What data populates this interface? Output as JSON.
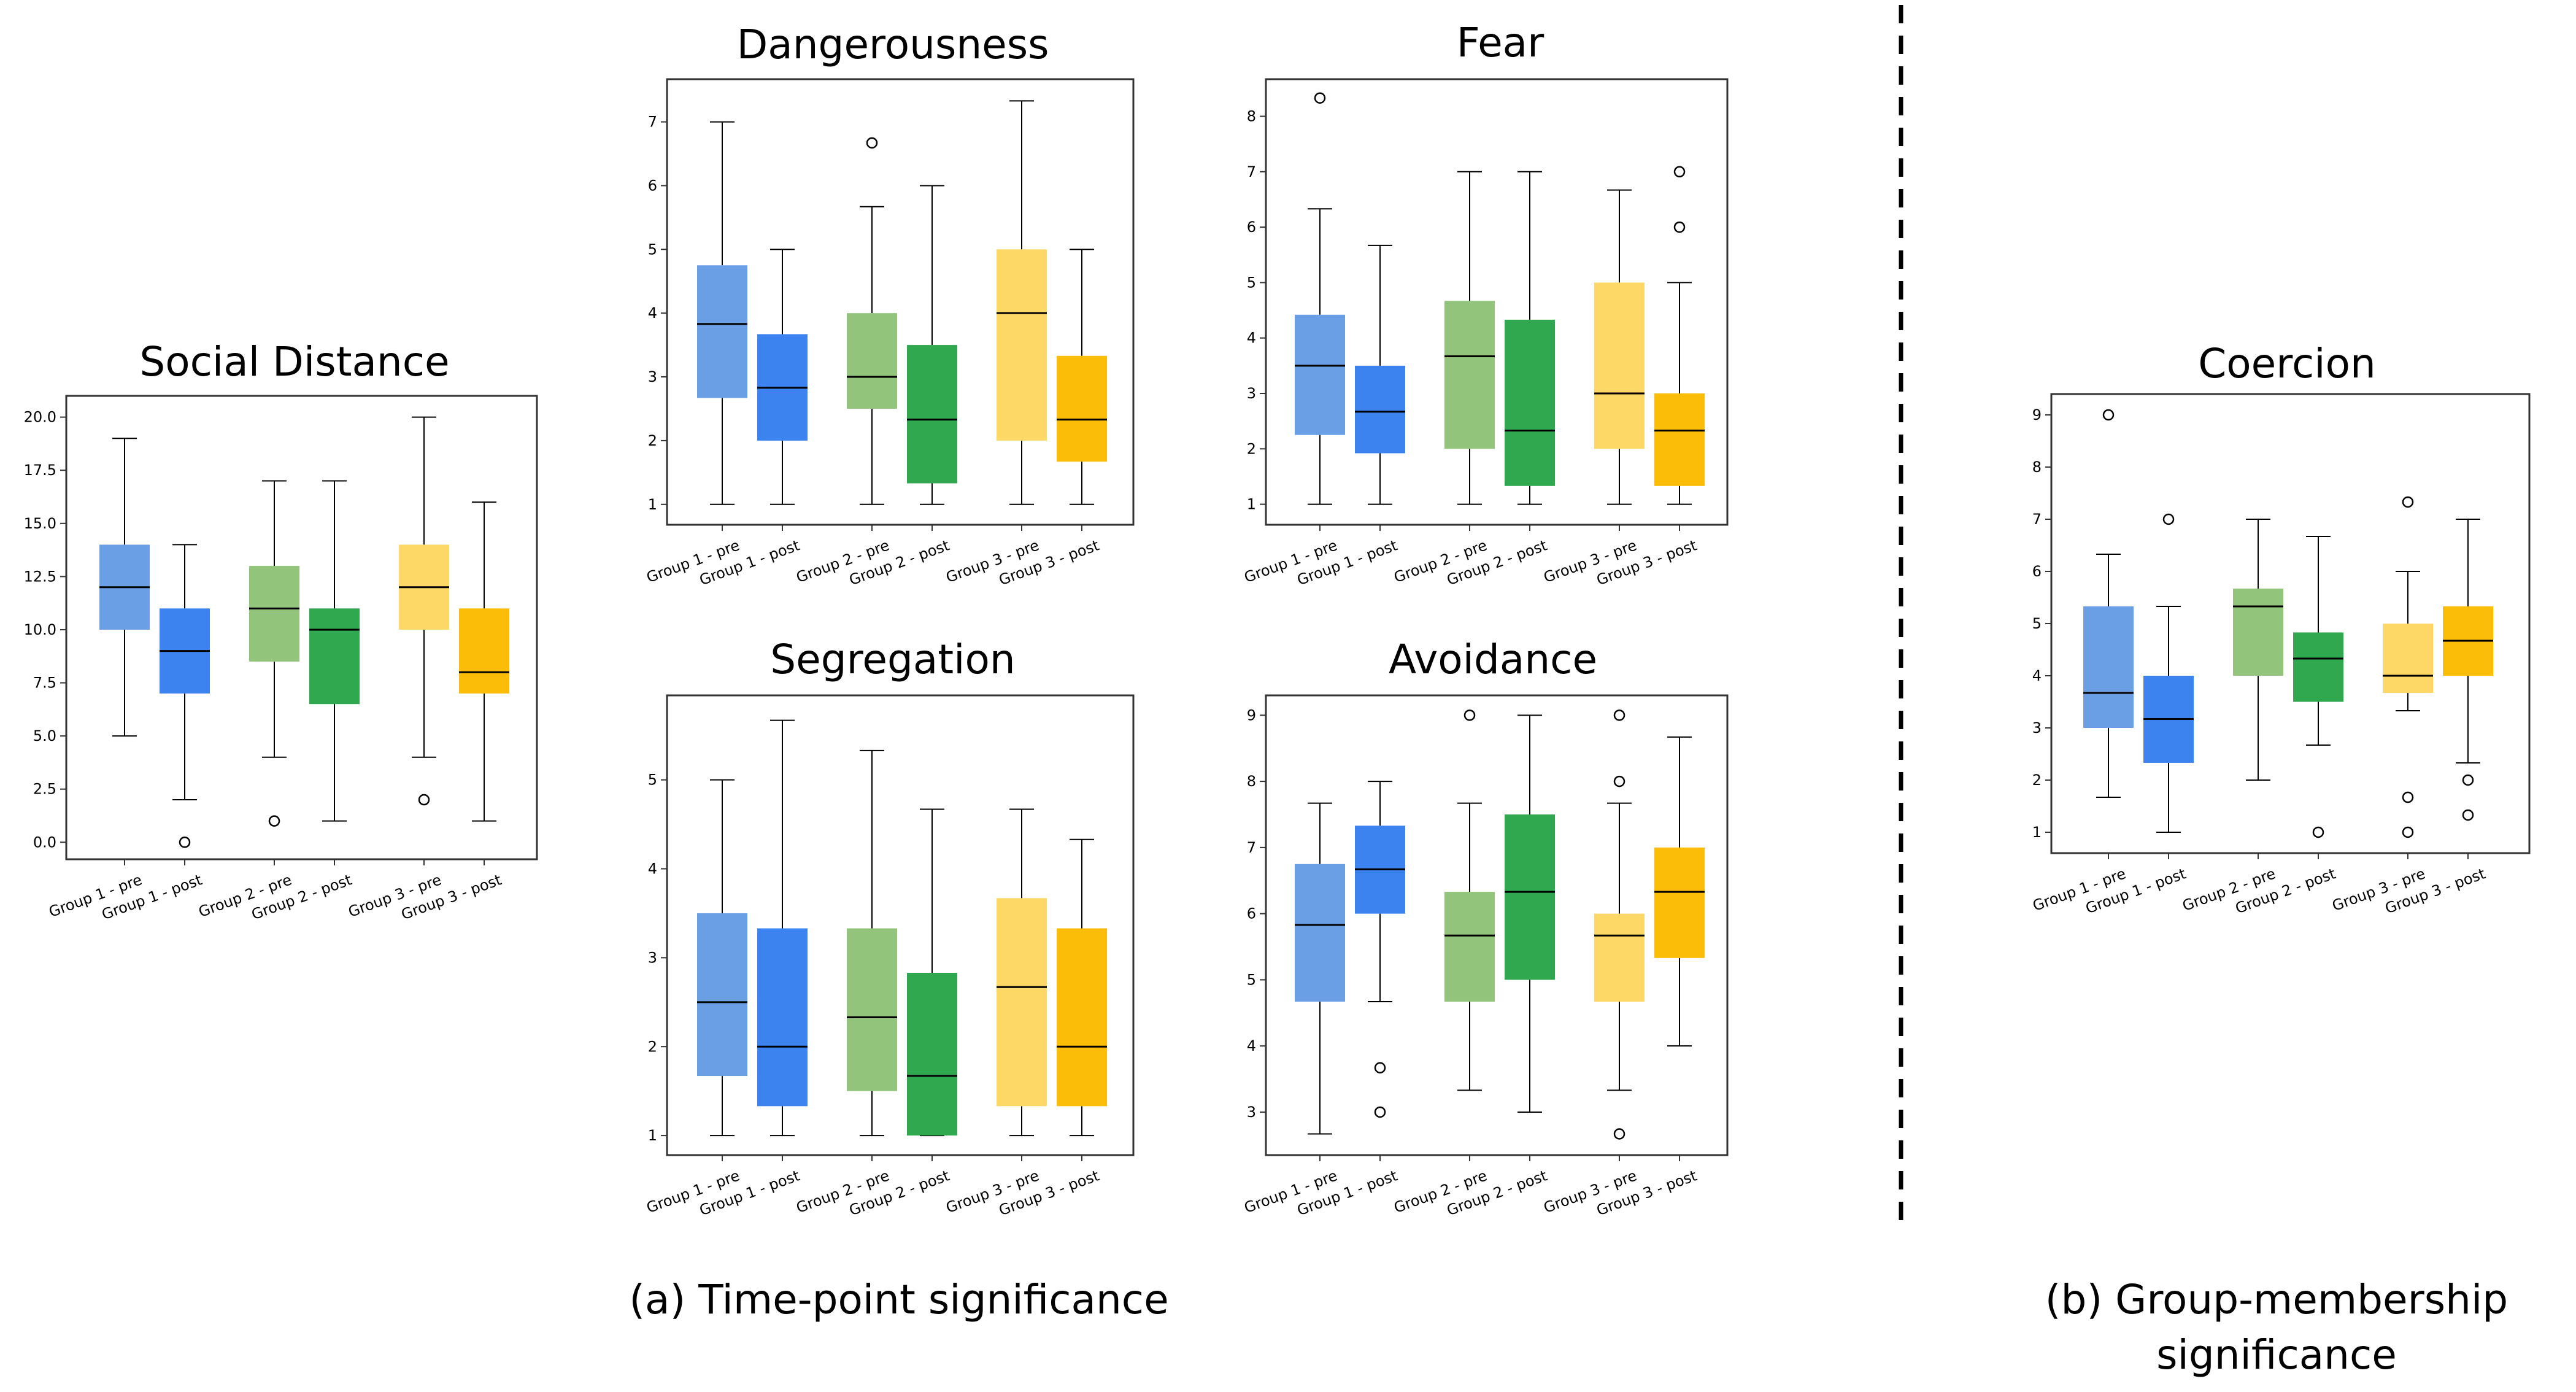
{
  "colors": {
    "g1_pre": "#6a9fe6",
    "g1_post": "#3d83f0",
    "g2_pre": "#92c47b",
    "g2_post": "#2fa84f",
    "g3_pre": "#fdd866",
    "g3_post": "#fbbd08",
    "median": "#000000",
    "frame": "#333333",
    "divider": "#000000"
  },
  "captions": {
    "a": "(a) Time-point significance",
    "b_line1": "(b) Group-membership",
    "b_line2": "significance"
  },
  "chart_data": [
    {
      "type": "boxplot",
      "title": "Social Distance",
      "categories": [
        "Group 1 - pre",
        "Group 1 - post",
        "Group 2 - pre",
        "Group 2 - post",
        "Group 3 - pre",
        "Group 3 - post"
      ],
      "ylim": [
        -0.8,
        21.0
      ],
      "yticks": [
        0.0,
        2.5,
        5.0,
        7.5,
        10.0,
        12.5,
        15.0,
        17.5,
        20.0
      ],
      "ytick_labels": [
        "0.0",
        "2.5",
        "5.0",
        "7.5",
        "10.0",
        "12.5",
        "15.0",
        "17.5",
        "20.0"
      ],
      "boxes": [
        {
          "min": 5,
          "q1": 10,
          "median": 12,
          "q3": 14,
          "max": 19,
          "outliers": []
        },
        {
          "min": 2,
          "q1": 7,
          "median": 9,
          "q3": 11,
          "max": 14,
          "outliers": [
            0
          ]
        },
        {
          "min": 4,
          "q1": 8.5,
          "median": 11,
          "q3": 13,
          "max": 17,
          "outliers": [
            1
          ]
        },
        {
          "min": 1,
          "q1": 6.5,
          "median": 10,
          "q3": 11,
          "max": 17,
          "outliers": []
        },
        {
          "min": 4,
          "q1": 10,
          "median": 12,
          "q3": 14,
          "max": 20,
          "outliers": [
            2
          ]
        },
        {
          "min": 1,
          "q1": 7,
          "median": 8,
          "q3": 11,
          "max": 16,
          "outliers": []
        }
      ]
    },
    {
      "type": "boxplot",
      "title": "Dangerousness",
      "categories": [
        "Group 1 - pre",
        "Group 1 - post",
        "Group 2 - pre",
        "Group 2 - post",
        "Group 3 - pre",
        "Group 3 - post"
      ],
      "ylim": [
        0.68,
        7.67
      ],
      "yticks": [
        1,
        2,
        3,
        4,
        5,
        6,
        7
      ],
      "ytick_labels": [
        "1",
        "2",
        "3",
        "4",
        "5",
        "6",
        "7"
      ],
      "boxes": [
        {
          "min": 1,
          "q1": 2.67,
          "median": 3.83,
          "q3": 4.75,
          "max": 7,
          "outliers": []
        },
        {
          "min": 1,
          "q1": 2,
          "median": 2.83,
          "q3": 3.67,
          "max": 5,
          "outliers": []
        },
        {
          "min": 1,
          "q1": 2.5,
          "median": 3,
          "q3": 4,
          "max": 5.67,
          "outliers": [
            6.67
          ]
        },
        {
          "min": 1,
          "q1": 1.33,
          "median": 2.33,
          "q3": 3.5,
          "max": 6,
          "outliers": []
        },
        {
          "min": 1,
          "q1": 2,
          "median": 4,
          "q3": 5,
          "max": 7.33,
          "outliers": []
        },
        {
          "min": 1,
          "q1": 1.67,
          "median": 2.33,
          "q3": 3.33,
          "max": 5,
          "outliers": []
        }
      ]
    },
    {
      "type": "boxplot",
      "title": "Fear",
      "categories": [
        "Group 1 - pre",
        "Group 1 - post",
        "Group 2 - pre",
        "Group 2 - post",
        "Group 3 - pre",
        "Group 3 - post"
      ],
      "ylim": [
        0.63,
        8.67
      ],
      "yticks": [
        1,
        2,
        3,
        4,
        5,
        6,
        7,
        8
      ],
      "ytick_labels": [
        "1",
        "2",
        "3",
        "4",
        "5",
        "6",
        "7",
        "8"
      ],
      "boxes": [
        {
          "min": 1,
          "q1": 2.25,
          "median": 3.5,
          "q3": 4.42,
          "max": 6.33,
          "outliers": [
            8.33
          ]
        },
        {
          "min": 1,
          "q1": 1.92,
          "median": 2.67,
          "q3": 3.5,
          "max": 5.67,
          "outliers": []
        },
        {
          "min": 1,
          "q1": 2,
          "median": 3.67,
          "q3": 4.67,
          "max": 7,
          "outliers": []
        },
        {
          "min": 1,
          "q1": 1.33,
          "median": 2.33,
          "q3": 4.33,
          "max": 7,
          "outliers": []
        },
        {
          "min": 1,
          "q1": 2,
          "median": 3,
          "q3": 5,
          "max": 6.67,
          "outliers": []
        },
        {
          "min": 1,
          "q1": 1.33,
          "median": 2.33,
          "q3": 3,
          "max": 5,
          "outliers": [
            6,
            7
          ]
        }
      ]
    },
    {
      "type": "boxplot",
      "title": "Segregation",
      "categories": [
        "Group 1 - pre",
        "Group 1 - post",
        "Group 2 - pre",
        "Group 2 - post",
        "Group 3 - pre",
        "Group 3 - post"
      ],
      "ylim": [
        0.78,
        5.95
      ],
      "yticks": [
        1,
        2,
        3,
        4,
        5
      ],
      "ytick_labels": [
        "1",
        "2",
        "3",
        "4",
        "5"
      ],
      "boxes": [
        {
          "min": 1,
          "q1": 1.67,
          "median": 2.5,
          "q3": 3.5,
          "max": 5,
          "outliers": []
        },
        {
          "min": 1,
          "q1": 1.33,
          "median": 2,
          "q3": 3.33,
          "max": 5.67,
          "outliers": []
        },
        {
          "min": 1,
          "q1": 1.5,
          "median": 2.33,
          "q3": 3.33,
          "max": 5.33,
          "outliers": []
        },
        {
          "min": 1,
          "q1": 1,
          "median": 1.67,
          "q3": 2.83,
          "max": 4.67,
          "outliers": []
        },
        {
          "min": 1,
          "q1": 1.33,
          "median": 2.67,
          "q3": 3.67,
          "max": 4.67,
          "outliers": []
        },
        {
          "min": 1,
          "q1": 1.33,
          "median": 2,
          "q3": 3.33,
          "max": 4.33,
          "outliers": []
        }
      ]
    },
    {
      "type": "boxplot",
      "title": "Avoidance",
      "categories": [
        "Group 1 - pre",
        "Group 1 - post",
        "Group 2 - pre",
        "Group 2 - post",
        "Group 3 - pre",
        "Group 3 - post"
      ],
      "ylim": [
        2.35,
        9.3
      ],
      "yticks": [
        3,
        4,
        5,
        6,
        7,
        8,
        9
      ],
      "ytick_labels": [
        "3",
        "4",
        "5",
        "6",
        "7",
        "8",
        "9"
      ],
      "boxes": [
        {
          "min": 2.67,
          "q1": 4.67,
          "median": 5.83,
          "q3": 6.75,
          "max": 7.67,
          "outliers": []
        },
        {
          "min": 4.67,
          "q1": 6,
          "median": 6.67,
          "q3": 7.33,
          "max": 8,
          "outliers": [
            3.67,
            3
          ]
        },
        {
          "min": 3.33,
          "q1": 4.67,
          "median": 5.67,
          "q3": 6.33,
          "max": 7.67,
          "outliers": [
            9
          ]
        },
        {
          "min": 3,
          "q1": 5,
          "median": 6.33,
          "q3": 7.5,
          "max": 9,
          "outliers": []
        },
        {
          "min": 3.33,
          "q1": 4.67,
          "median": 5.67,
          "q3": 6,
          "max": 7.67,
          "outliers": [
            9,
            8,
            2.67
          ]
        },
        {
          "min": 4,
          "q1": 5.33,
          "median": 6.33,
          "q3": 7,
          "max": 8.67,
          "outliers": []
        }
      ]
    },
    {
      "type": "boxplot",
      "title": "Coercion",
      "categories": [
        "Group 1 - pre",
        "Group 1 - post",
        "Group 2 - pre",
        "Group 2 - post",
        "Group 3 - pre",
        "Group 3 - post"
      ],
      "ylim": [
        0.6,
        9.4
      ],
      "yticks": [
        1,
        2,
        3,
        4,
        5,
        6,
        7,
        8,
        9
      ],
      "ytick_labels": [
        "1",
        "2",
        "3",
        "4",
        "5",
        "6",
        "7",
        "8",
        "9"
      ],
      "boxes": [
        {
          "min": 1.67,
          "q1": 3,
          "median": 3.67,
          "q3": 5.33,
          "max": 6.33,
          "outliers": [
            9
          ]
        },
        {
          "min": 1,
          "q1": 2.33,
          "median": 3.17,
          "q3": 4,
          "max": 5.33,
          "outliers": [
            7
          ]
        },
        {
          "min": 2,
          "q1": 4,
          "median": 5.33,
          "q3": 5.67,
          "max": 7,
          "outliers": []
        },
        {
          "min": 2.67,
          "q1": 3.5,
          "median": 4.33,
          "q3": 4.83,
          "max": 6.67,
          "outliers": [
            1
          ]
        },
        {
          "min": 3.33,
          "q1": 3.67,
          "median": 4,
          "q3": 5,
          "max": 6,
          "outliers": [
            7.33,
            1.67,
            1
          ]
        },
        {
          "min": 2.33,
          "q1": 4,
          "median": 4.67,
          "q3": 5.33,
          "max": 7,
          "outliers": [
            2,
            1.33
          ]
        }
      ]
    }
  ]
}
